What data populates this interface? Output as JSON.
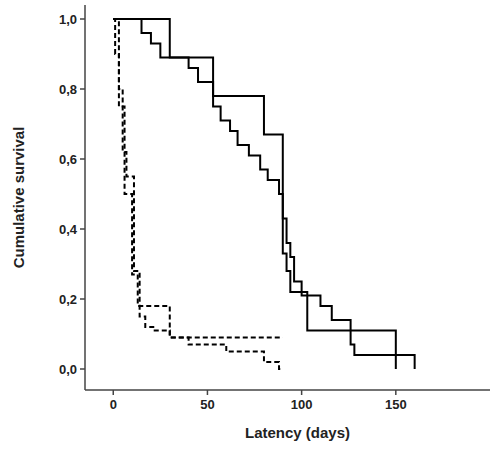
{
  "chart_data": {
    "type": "step",
    "x_label": "Latency (days)",
    "y_label": "Cumulative survival",
    "xlim": [
      -15,
      200
    ],
    "ylim": [
      -0.06,
      1.04
    ],
    "xticks": [
      0,
      50,
      100,
      150
    ],
    "yticks": [
      {
        "value": 0,
        "label": "0,0"
      },
      {
        "value": 0.2,
        "label": "0,2"
      },
      {
        "value": 0.4,
        "label": "0,4"
      },
      {
        "value": 0.6,
        "label": "0,6"
      },
      {
        "value": 0.8,
        "label": "0,8"
      },
      {
        "value": 1,
        "label": "1,0"
      }
    ],
    "grid": false,
    "series": [
      {
        "color": "#000000",
        "line_style": "solid",
        "x": [
          0,
          30,
          53,
          80,
          90,
          92,
          94,
          103,
          150
        ],
        "values": [
          1.0,
          0.89,
          0.78,
          0.67,
          0.33,
          0.28,
          0.22,
          0.11,
          0.0
        ]
      },
      {
        "color": "#000000",
        "line_style": "solid",
        "x": [
          0,
          15,
          20,
          25,
          40,
          45,
          53,
          57,
          62,
          66,
          72,
          78,
          82,
          88,
          90,
          92,
          94,
          96,
          100,
          110,
          116,
          126,
          128,
          160
        ],
        "values": [
          1.0,
          0.96,
          0.93,
          0.89,
          0.86,
          0.82,
          0.75,
          0.71,
          0.68,
          0.64,
          0.61,
          0.57,
          0.54,
          0.5,
          0.43,
          0.36,
          0.32,
          0.25,
          0.21,
          0.18,
          0.14,
          0.07,
          0.04,
          0.0
        ]
      },
      {
        "color": "#000000",
        "line_style": "dashed",
        "x": [
          0,
          3,
          6,
          10,
          13,
          30,
          90
        ],
        "values": [
          1.0,
          0.75,
          0.5,
          0.27,
          0.18,
          0.09,
          0.09
        ]
      },
      {
        "color": "#000000",
        "line_style": "dashed",
        "x": [
          0,
          1,
          3,
          5,
          7,
          11,
          14,
          17,
          22,
          30,
          40,
          60,
          80,
          88,
          90
        ],
        "values": [
          1.0,
          0.9,
          0.8,
          0.62,
          0.55,
          0.28,
          0.15,
          0.12,
          0.11,
          0.09,
          0.07,
          0.05,
          0.02,
          0.0,
          0.0
        ]
      }
    ]
  }
}
